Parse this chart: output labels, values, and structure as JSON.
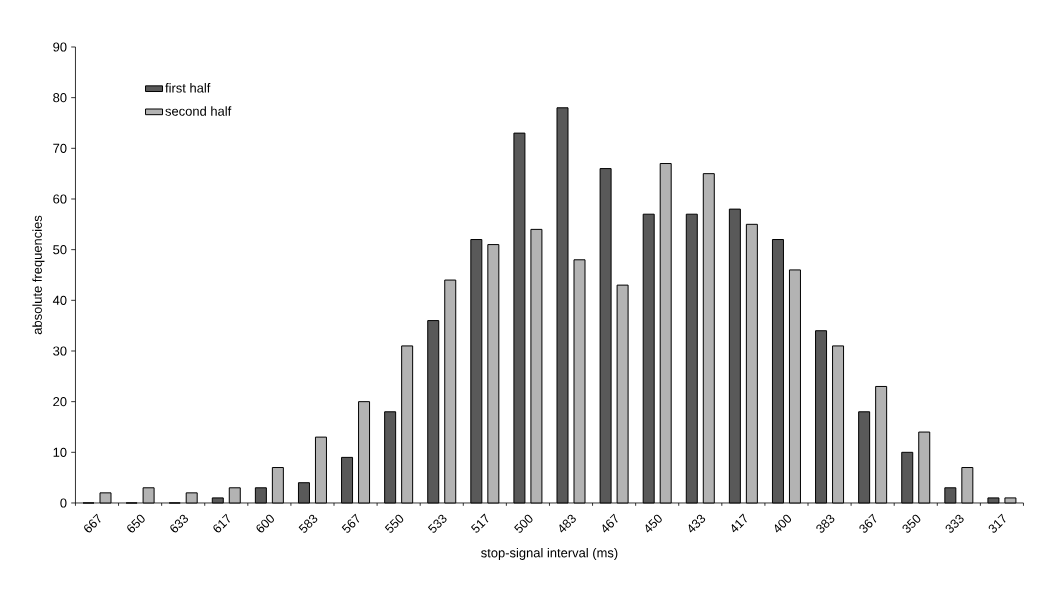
{
  "chart_data": {
    "type": "bar",
    "xlabel": "stop-signal interval (ms)",
    "ylabel": "absolute frequencies",
    "categories": [
      "667",
      "650",
      "633",
      "617",
      "600",
      "583",
      "567",
      "550",
      "533",
      "517",
      "500",
      "483",
      "467",
      "450",
      "433",
      "417",
      "400",
      "383",
      "367",
      "350",
      "333",
      "317"
    ],
    "series": [
      {
        "name": "first half",
        "color": "#595959",
        "values": [
          0,
          0,
          0,
          1,
          3,
          4,
          9,
          18,
          36,
          52,
          73,
          78,
          66,
          57,
          57,
          58,
          52,
          34,
          18,
          10,
          3,
          1
        ]
      },
      {
        "name": "second half",
        "color": "#b3b3b3",
        "values": [
          2,
          3,
          2,
          3,
          7,
          13,
          20,
          31,
          44,
          51,
          54,
          48,
          43,
          67,
          65,
          55,
          46,
          31,
          23,
          14,
          7,
          1
        ]
      }
    ],
    "ylim": [
      0,
      90
    ],
    "yticks": [
      0,
      10,
      20,
      30,
      40,
      50,
      60,
      70,
      80,
      90
    ],
    "grid": false,
    "legend": "top left"
  }
}
